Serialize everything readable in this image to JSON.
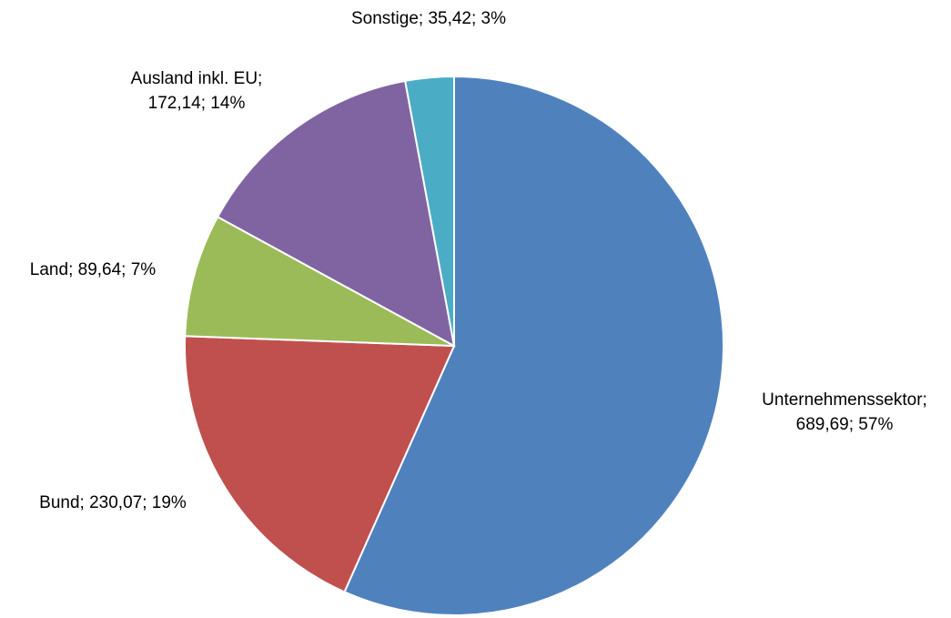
{
  "chart_data": {
    "type": "pie",
    "values": [
      689.69,
      230.07,
      89.64,
      172.14,
      35.42
    ],
    "value_labels": [
      [
        "Unternehmenssektor;",
        "689,69; 57%"
      ],
      [
        "Bund; 230,07; 19%"
      ],
      [
        "Land; 89,64; 7%"
      ],
      [
        "Ausland inkl. EU;",
        "172,14; 14%"
      ],
      [
        "Sonstige; 35,42; 3%"
      ]
    ],
    "colors": [
      "#4f81bd",
      "#c0504d",
      "#9bbb59",
      "#8064a2",
      "#4bacc6"
    ]
  }
}
